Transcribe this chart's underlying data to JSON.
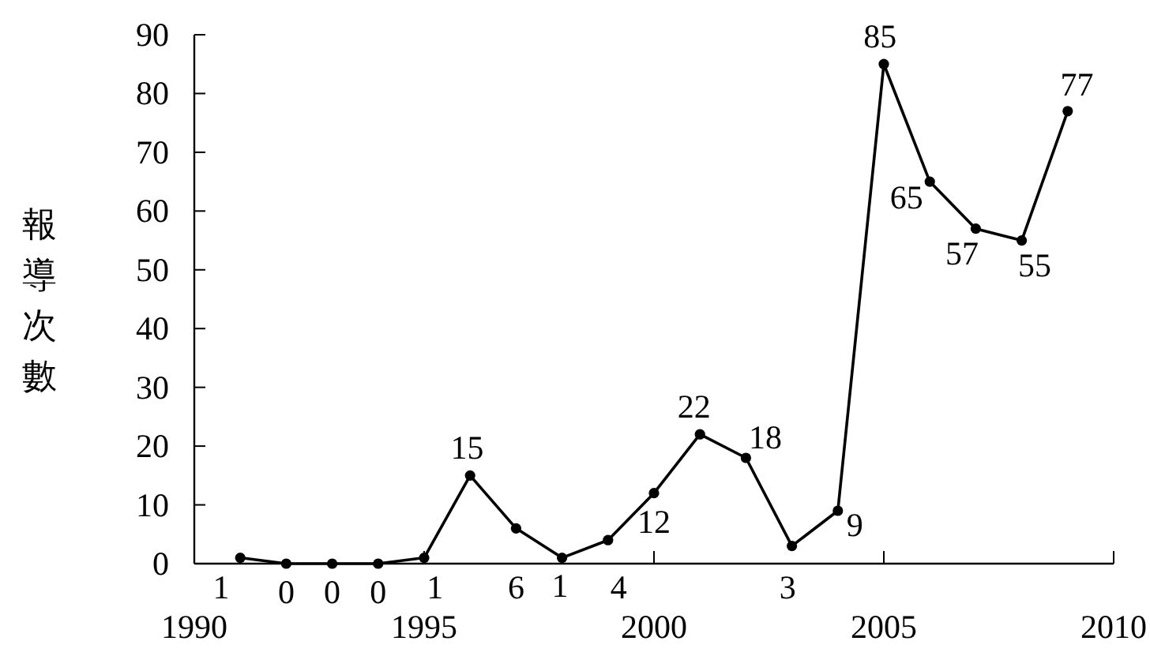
{
  "chart_data": {
    "type": "line",
    "ylabel": "報導次數",
    "x": [
      1991,
      1992,
      1993,
      1994,
      1995,
      1996,
      1997,
      1998,
      1999,
      2000,
      2001,
      2002,
      2003,
      2004,
      2005,
      2006,
      2007,
      2008,
      2009
    ],
    "series": [
      {
        "color": "#000000",
        "values": [
          1,
          0,
          0,
          0,
          1,
          15,
          6,
          1,
          4,
          12,
          22,
          18,
          3,
          9,
          85,
          65,
          57,
          55,
          77
        ]
      }
    ],
    "xlim": [
      1990,
      2010
    ],
    "xticks": [
      1990,
      1995,
      2000,
      2005,
      2010
    ],
    "ylim": [
      0,
      90
    ],
    "yticks": [
      0,
      10,
      20,
      30,
      40,
      50,
      60,
      70,
      80,
      90
    ],
    "data_labels": true,
    "marker": "circle",
    "line_style": "solid"
  }
}
